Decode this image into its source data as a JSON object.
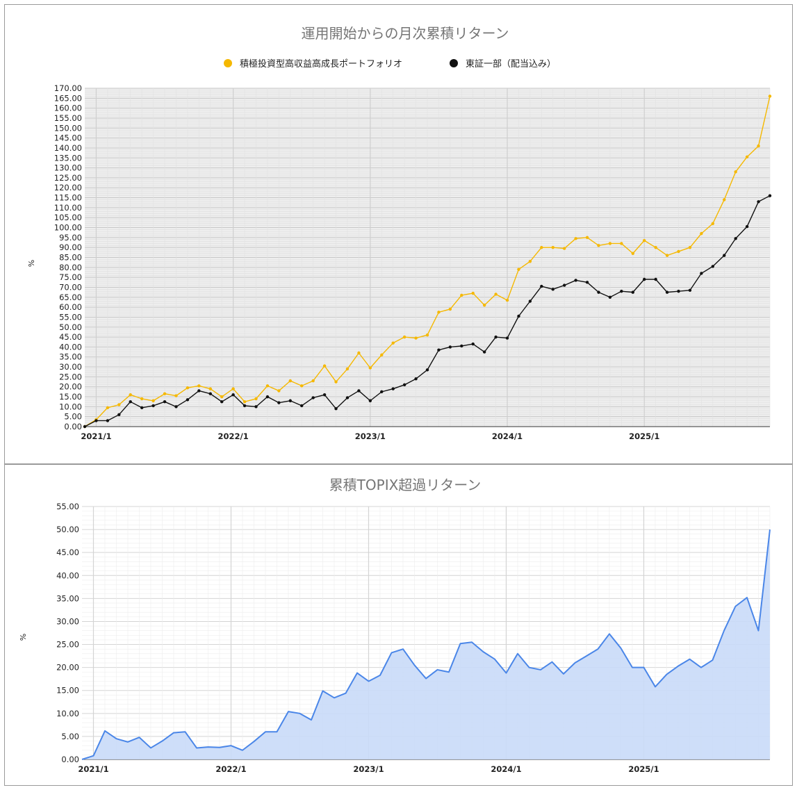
{
  "chart_data": [
    {
      "type": "line",
      "title": "運用開始からの月次累積リターン",
      "ylabel": "%",
      "ylim": [
        0,
        170
      ],
      "ytick_step": 5,
      "xticks": [
        "2021/1",
        "2022/1",
        "2023/1",
        "2024/1",
        "2025/1"
      ],
      "grid": true,
      "legend": "top-center",
      "series": [
        {
          "name": "積極投資型高収益高成長ポートフォリオ",
          "color": "#f5b800",
          "values": [
            0,
            3.5,
            9.5,
            11,
            16,
            14,
            13,
            16.5,
            15.5,
            19.5,
            20.5,
            19,
            15,
            19,
            12.5,
            14,
            20.5,
            18,
            23,
            20.5,
            23,
            30.5,
            22.5,
            29,
            37,
            29.5,
            36,
            42,
            45,
            44.5,
            46,
            57.5,
            59,
            66,
            67,
            61,
            66.5,
            63.5,
            79,
            83,
            90,
            90,
            89.5,
            94.5,
            95,
            91,
            92,
            92,
            87,
            93.5,
            90,
            86,
            88,
            90,
            97,
            102,
            114,
            128,
            135.5,
            141,
            166
          ]
        },
        {
          "name": "東証一部（配当込み）",
          "color": "#111111",
          "values": [
            0,
            3,
            3,
            6,
            12.5,
            9.5,
            10.5,
            12.5,
            10,
            13.5,
            18,
            16.5,
            12.5,
            16,
            10.5,
            10,
            15,
            12,
            13,
            10.5,
            14.5,
            16,
            9,
            14.5,
            18,
            13,
            17.5,
            19,
            21,
            24,
            28.5,
            38.5,
            40,
            40.5,
            41.5,
            37.5,
            45,
            44.5,
            55.5,
            63,
            70.5,
            69,
            71,
            73.5,
            72.5,
            67.5,
            65,
            68,
            67.5,
            74,
            74,
            67.5,
            68,
            68.5,
            77,
            80.5,
            86,
            94.5,
            100.5,
            113,
            116
          ]
        }
      ]
    },
    {
      "type": "area",
      "title": "累積TOPIX超過リターン",
      "ylabel": "%",
      "ylim": [
        0,
        55
      ],
      "ytick_step": 5,
      "xticks": [
        "2021/1",
        "2022/1",
        "2023/1",
        "2024/1",
        "2025/1"
      ],
      "grid": true,
      "series": [
        {
          "color": "#4a86e8",
          "fill": "#c9daf8",
          "values": [
            0,
            0.8,
            6.2,
            4.5,
            3.8,
            4.8,
            2.5,
            4,
            5.8,
            6,
            2.5,
            2.7,
            2.6,
            3,
            2,
            3.9,
            6,
            6,
            10.4,
            10,
            8.6,
            14.9,
            13.4,
            14.4,
            18.8,
            17,
            18.3,
            23.2,
            24,
            20.5,
            17.6,
            19.5,
            19,
            25.2,
            25.5,
            23.4,
            21.8,
            18.8,
            23,
            20,
            19.5,
            21.2,
            18.6,
            21,
            22.5,
            24,
            27.3,
            24.2,
            20,
            20,
            15.8,
            18.5,
            20.3,
            21.8,
            20,
            21.6,
            28,
            33.3,
            35.2,
            28,
            50
          ]
        }
      ]
    }
  ]
}
